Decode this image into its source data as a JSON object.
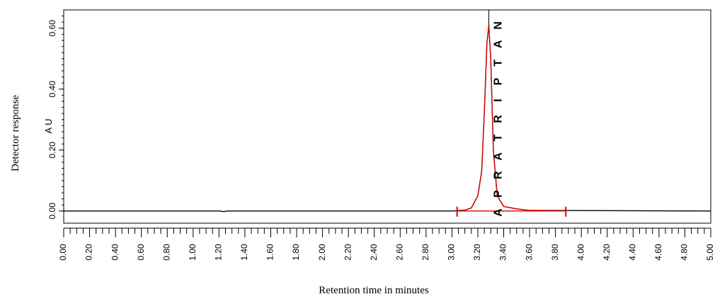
{
  "chart_data": {
    "type": "line",
    "title": "",
    "xlabel": "Retention time in minutes",
    "ylabel": "Detector response",
    "y_unit": "A U",
    "xlim": [
      0.0,
      5.0
    ],
    "ylim": [
      -0.04,
      0.66
    ],
    "y_ticks": [
      0.0,
      0.2,
      0.4,
      0.6
    ],
    "y_tick_labels": [
      "0.00",
      "0.20",
      "0.40",
      "0.60"
    ],
    "x_labelled_ticks": [
      0.0,
      0.2,
      0.4,
      0.6,
      0.8,
      1.0,
      1.2,
      1.4,
      1.6,
      1.8,
      2.0,
      2.2,
      2.4,
      2.6,
      2.8,
      3.0,
      3.2,
      3.4,
      3.6,
      3.8,
      4.0,
      4.2,
      4.4,
      4.6,
      4.8,
      5.0
    ],
    "x_tick_labels": [
      "0.00",
      "0.20",
      "0.40",
      "0.60",
      "0.80",
      "1.00",
      "1.20",
      "1.40",
      "1.60",
      "1.80",
      "2.00",
      "2.20",
      "2.40",
      "2.60",
      "2.80",
      "3.00",
      "3.20",
      "3.40",
      "3.60",
      "3.80",
      "4.00",
      "4.20",
      "4.40",
      "4.60",
      "4.80",
      "5.00"
    ],
    "x_minor_step": 0.05,
    "grid": false,
    "series": [
      {
        "name": "",
        "color": "#000000",
        "x": [
          0.0,
          1.2,
          1.24,
          1.26,
          1.3,
          3.0,
          3.1,
          3.15,
          3.2,
          3.23,
          3.25,
          3.27,
          3.285,
          3.3,
          3.32,
          3.35,
          3.4,
          3.5,
          3.6,
          5.0
        ],
        "y": [
          0.0,
          0.0,
          -0.002,
          0.0,
          0.0,
          0.0,
          0.003,
          0.01,
          0.05,
          0.13,
          0.32,
          0.55,
          0.61,
          0.5,
          0.2,
          0.05,
          0.015,
          0.007,
          0.002,
          0.0
        ]
      },
      {
        "name": "",
        "color": "#e00000",
        "x": [
          3.04,
          3.1,
          3.15,
          3.2,
          3.23,
          3.25,
          3.27,
          3.285,
          3.3,
          3.32,
          3.35,
          3.4,
          3.5,
          3.6,
          3.88
        ],
        "y": [
          0.0,
          0.003,
          0.01,
          0.05,
          0.13,
          0.32,
          0.55,
          0.61,
          0.5,
          0.2,
          0.05,
          0.015,
          0.007,
          0.002,
          0.0
        ]
      }
    ],
    "integration": {
      "color": "#e00000",
      "start": 3.04,
      "end": 3.88,
      "baseline_y": 0.0,
      "peak_marker_x": 3.285
    },
    "annotations": [
      {
        "text": "APRATRIPTAN",
        "x": 3.29,
        "orientation": "vertical-stacked"
      }
    ],
    "vertical_label_letters": [
      "A",
      "P",
      "R",
      "A",
      "T",
      "R",
      "I",
      "P",
      "T",
      "A",
      "N"
    ],
    "colors": {
      "axis": "#000000",
      "trace": "#000000",
      "integration": "#e00000"
    }
  }
}
